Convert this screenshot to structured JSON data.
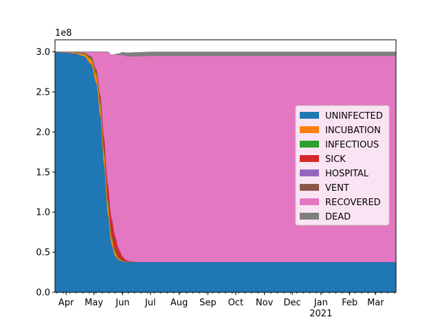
{
  "chart_data": {
    "type": "area",
    "stacked": true,
    "title": "",
    "xlabel": "",
    "ylabel": "",
    "y_scale_label": "1e8",
    "x_range": [
      "2020-03-20",
      "2021-03-23"
    ],
    "ylim": [
      0,
      3.15
    ],
    "y_ticks": [
      {
        "value": 0.0,
        "label": "0.0"
      },
      {
        "value": 0.5,
        "label": "0.5"
      },
      {
        "value": 1.0,
        "label": "1.0"
      },
      {
        "value": 1.5,
        "label": "1.5"
      },
      {
        "value": 2.0,
        "label": "2.0"
      },
      {
        "value": 2.5,
        "label": "2.5"
      },
      {
        "value": 3.0,
        "label": "3.0"
      }
    ],
    "x_ticks": [
      {
        "date": "2020-04-01",
        "label": "Apr"
      },
      {
        "date": "2020-05-01",
        "label": "May"
      },
      {
        "date": "2020-06-01",
        "label": "Jun"
      },
      {
        "date": "2020-07-01",
        "label": "Jul"
      },
      {
        "date": "2020-08-01",
        "label": "Aug"
      },
      {
        "date": "2020-09-01",
        "label": "Sep"
      },
      {
        "date": "2020-10-01",
        "label": "Oct"
      },
      {
        "date": "2020-11-01",
        "label": "Nov"
      },
      {
        "date": "2020-12-01",
        "label": "Dec"
      },
      {
        "date": "2021-01-01",
        "label": "Jan",
        "sublabel": "2021"
      },
      {
        "date": "2021-02-01",
        "label": "Feb"
      },
      {
        "date": "2021-03-01",
        "label": "Mar"
      }
    ],
    "legend_position": "center-right",
    "x": [
      "2020-03-20",
      "2020-04-01",
      "2020-04-10",
      "2020-04-20",
      "2020-04-28",
      "2020-05-04",
      "2020-05-08",
      "2020-05-12",
      "2020-05-16",
      "2020-05-20",
      "2020-05-24",
      "2020-05-28",
      "2020-06-01",
      "2020-06-05",
      "2020-06-10",
      "2020-06-15",
      "2020-06-20",
      "2020-07-01",
      "2020-07-15",
      "2020-08-01",
      "2021-03-23"
    ],
    "series": [
      {
        "name": "UNINFECTED",
        "color": "#1f77b4",
        "values": [
          3.0,
          2.99,
          2.98,
          2.95,
          2.85,
          2.6,
          2.2,
          1.6,
          1.0,
          0.6,
          0.45,
          0.4,
          0.385,
          0.38,
          0.38,
          0.38,
          0.38,
          0.38,
          0.38,
          0.38,
          0.38
        ]
      },
      {
        "name": "INCUBATION",
        "color": "#ff7f0e",
        "values": [
          0.0,
          0.005,
          0.01,
          0.025,
          0.06,
          0.1,
          0.13,
          0.14,
          0.12,
          0.08,
          0.04,
          0.015,
          0.005,
          0.002,
          0.0,
          0.0,
          0.0,
          0.0,
          0.0,
          0.0,
          0.0
        ]
      },
      {
        "name": "INFECTIOUS",
        "color": "#2ca02c",
        "values": [
          0.0,
          0.002,
          0.004,
          0.01,
          0.02,
          0.03,
          0.04,
          0.05,
          0.05,
          0.04,
          0.025,
          0.012,
          0.005,
          0.002,
          0.0,
          0.0,
          0.0,
          0.0,
          0.0,
          0.0,
          0.0
        ]
      },
      {
        "name": "SICK",
        "color": "#d62728",
        "values": [
          0.0,
          0.0,
          0.002,
          0.005,
          0.015,
          0.04,
          0.08,
          0.14,
          0.18,
          0.2,
          0.17,
          0.1,
          0.045,
          0.015,
          0.005,
          0.002,
          0.0,
          0.0,
          0.0,
          0.0,
          0.0
        ]
      },
      {
        "name": "HOSPITAL",
        "color": "#9467bd",
        "values": [
          0.0,
          0.0,
          0.0,
          0.001,
          0.002,
          0.004,
          0.008,
          0.012,
          0.016,
          0.018,
          0.016,
          0.012,
          0.007,
          0.003,
          0.001,
          0.0,
          0.0,
          0.0,
          0.0,
          0.0,
          0.0
        ]
      },
      {
        "name": "VENT",
        "color": "#8c564b",
        "values": [
          0.0,
          0.0,
          0.0,
          0.0,
          0.001,
          0.002,
          0.004,
          0.006,
          0.008,
          0.009,
          0.008,
          0.006,
          0.004,
          0.002,
          0.001,
          0.0,
          0.0,
          0.0,
          0.0,
          0.0,
          0.0
        ]
      },
      {
        "name": "RECOVERED",
        "color": "#e377c2",
        "values": [
          0.0,
          0.003,
          0.004,
          0.009,
          0.052,
          0.224,
          0.538,
          1.052,
          1.626,
          2.013,
          2.256,
          2.415,
          2.509,
          2.541,
          2.555,
          2.562,
          2.565,
          2.57,
          2.57,
          2.57,
          2.57
        ]
      },
      {
        "name": "DEAD",
        "color": "#7f7f7f",
        "values": [
          0.0,
          0.0,
          0.0,
          0.0,
          0.0,
          0.0,
          0.0,
          0.0,
          0.0,
          0.0,
          0.005,
          0.02,
          0.035,
          0.045,
          0.048,
          0.05,
          0.05,
          0.05,
          0.05,
          0.05,
          0.05
        ]
      }
    ]
  }
}
